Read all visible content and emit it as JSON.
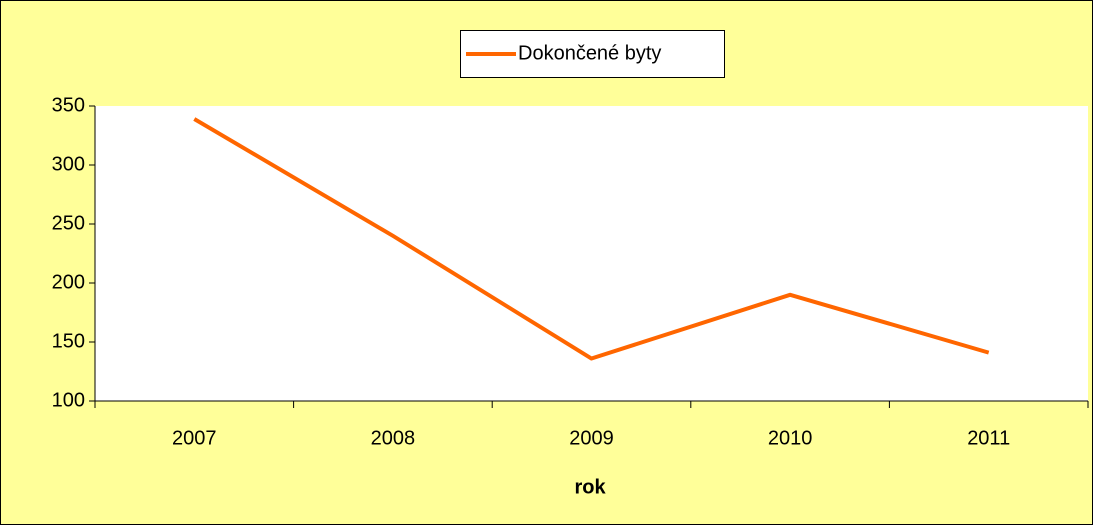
{
  "chart_data": {
    "type": "line",
    "x_label": "rok",
    "categories": [
      "2007",
      "2008",
      "2009",
      "2010",
      "2011"
    ],
    "series": [
      {
        "name": "Dokončené byty",
        "color": "#ff6600",
        "values": [
          339,
          240,
          136,
          190,
          141
        ]
      }
    ],
    "ylim": [
      100,
      350
    ],
    "yticks": [
      100,
      150,
      200,
      250,
      300,
      350
    ],
    "grid": false
  }
}
